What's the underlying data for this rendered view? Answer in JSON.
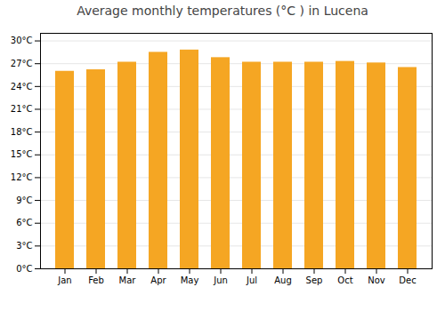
{
  "chart_data": {
    "type": "bar",
    "title": "Average monthly temperatures (°C ) in Lucena",
    "categories": [
      "Jan",
      "Feb",
      "Mar",
      "Apr",
      "May",
      "Jun",
      "Jul",
      "Aug",
      "Sep",
      "Oct",
      "Nov",
      "Dec"
    ],
    "values": [
      26.0,
      26.2,
      27.2,
      28.5,
      28.8,
      27.8,
      27.2,
      27.2,
      27.2,
      27.3,
      27.1,
      26.5
    ],
    "color": "#F5A623",
    "ylim": [
      0,
      31
    ],
    "yticks": [
      {
        "value": 0,
        "label": "0°C"
      },
      {
        "value": 3,
        "label": "3°C"
      },
      {
        "value": 6,
        "label": "6°C"
      },
      {
        "value": 9,
        "label": "9°C"
      },
      {
        "value": 12,
        "label": "12°C"
      },
      {
        "value": 15,
        "label": "15°C"
      },
      {
        "value": 18,
        "label": "18°C"
      },
      {
        "value": 21,
        "label": "21°C"
      },
      {
        "value": 24,
        "label": "24°C"
      },
      {
        "value": 27,
        "label": "27°C"
      },
      {
        "value": 30,
        "label": "30°C"
      }
    ],
    "grid": true
  }
}
